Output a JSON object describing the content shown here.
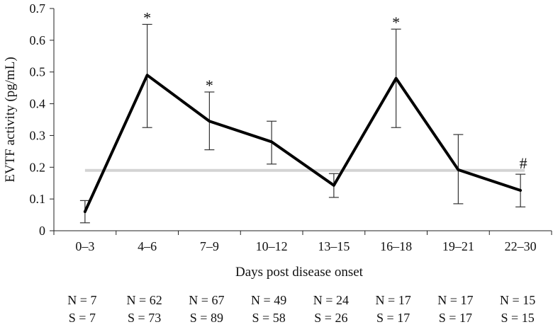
{
  "chart_data": {
    "type": "line",
    "title": "",
    "xlabel": "Days post disease onset",
    "ylabel": "EVTF activity (pg/mL)",
    "ylim": [
      0,
      0.7
    ],
    "yticks": [
      "0",
      "0.1",
      "0.2",
      "0.3",
      "0.4",
      "0.5",
      "0.6",
      "0.7"
    ],
    "categories": [
      "0–3",
      "4–6",
      "7–9",
      "10–12",
      "13–15",
      "16–18",
      "19–21",
      "22–30"
    ],
    "series": [
      {
        "values": [
          0.06,
          0.49,
          0.345,
          0.28,
          0.143,
          0.48,
          0.192,
          0.127
        ],
        "error_low": [
          0.025,
          0.325,
          0.255,
          0.21,
          0.105,
          0.325,
          0.085,
          0.075
        ],
        "error_high": [
          0.095,
          0.65,
          0.437,
          0.345,
          0.18,
          0.635,
          0.303,
          0.178
        ],
        "color": "#000000"
      }
    ],
    "reference_line": {
      "value": 0.19,
      "color": "#d3d3d3"
    },
    "annotations": [
      "",
      "*",
      "*",
      "",
      "",
      "*",
      "",
      "#"
    ],
    "grid": false,
    "counts": {
      "n": [
        "N = 7",
        "N = 62",
        "N = 67",
        "N = 49",
        "N = 24",
        "N = 17",
        "N = 17",
        "N = 15"
      ],
      "s": [
        "S = 7",
        "S = 73",
        "S = 89",
        "S = 58",
        "S = 26",
        "S = 17",
        "S = 17",
        "S = 15"
      ]
    }
  }
}
